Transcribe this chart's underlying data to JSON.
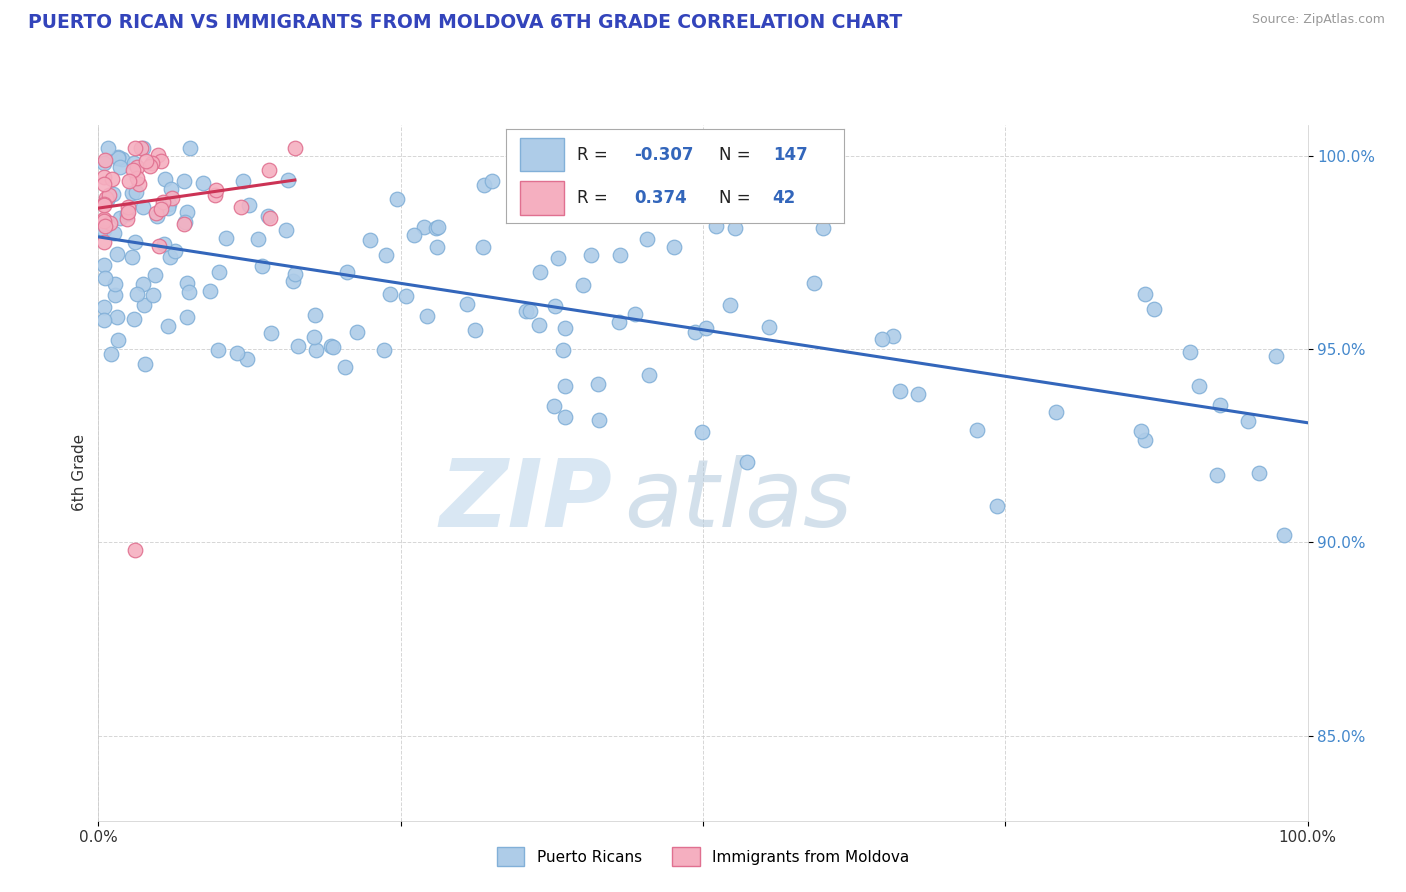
{
  "title": "PUERTO RICAN VS IMMIGRANTS FROM MOLDOVA 6TH GRADE CORRELATION CHART",
  "source": "Source: ZipAtlas.com",
  "ylabel": "6th Grade",
  "r_blue": -0.307,
  "n_blue": 147,
  "r_pink": 0.374,
  "n_pink": 42,
  "xlim": [
    0.0,
    1.0
  ],
  "ylim": [
    0.828,
    1.008
  ],
  "yticks": [
    0.85,
    0.9,
    0.95,
    1.0
  ],
  "ytick_labels": [
    "85.0%",
    "90.0%",
    "95.0%",
    "100.0%"
  ],
  "xtick_labels": [
    "0.0%",
    "",
    "",
    "",
    "100.0%"
  ],
  "legend_labels": [
    "Puerto Ricans",
    "Immigrants from Moldova"
  ],
  "blue_color": "#aecce8",
  "blue_edge": "#82b0d8",
  "pink_color": "#f5afc0",
  "pink_edge": "#e07090",
  "trend_blue": "#3366bb",
  "trend_pink": "#cc3355",
  "title_color": "#3344bb",
  "ytick_color": "#4488cc",
  "watermark_zip_color": "#c0d8ec",
  "watermark_atlas_color": "#b0c8dc"
}
